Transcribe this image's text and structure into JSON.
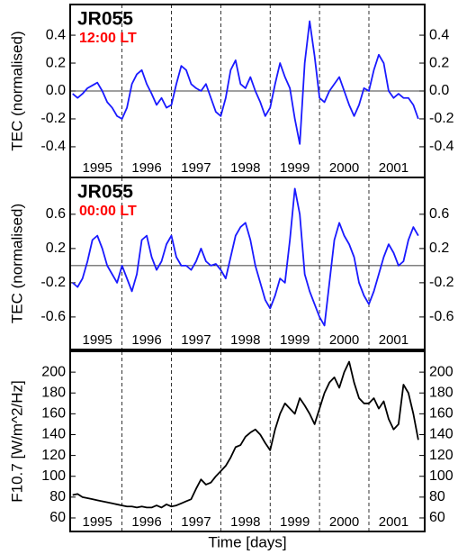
{
  "chart_data": [
    {
      "type": "line",
      "title": "JR055",
      "subtitle": "12:00 LT",
      "ylabel": "TEC (normalised)",
      "color": "#1a1aff",
      "zero_line": true,
      "xlim": [
        1994.95,
        2002.13
      ],
      "ylim": [
        -0.62,
        0.62
      ],
      "yticks": [
        -0.4,
        -0.2,
        {
          "value": 0,
          "label": "0.0"
        },
        0.2,
        0.4
      ],
      "xticks": [
        {
          "value": 1995.5,
          "label": "1995"
        },
        {
          "value": 1996.5,
          "label": "1996"
        },
        {
          "value": 1997.5,
          "label": "1997"
        },
        {
          "value": 1998.5,
          "label": "1998"
        },
        {
          "value": 1999.5,
          "label": "1999"
        },
        {
          "value": 2000.5,
          "label": "2000"
        },
        {
          "value": 2001.5,
          "label": "2001"
        }
      ],
      "vlines": [
        1996,
        1997,
        1998,
        1999,
        2000,
        2001
      ],
      "x": [
        1995.0,
        1995.1,
        1995.2,
        1995.3,
        1995.4,
        1995.5,
        1995.6,
        1995.7,
        1995.8,
        1995.9,
        1996.0,
        1996.1,
        1996.2,
        1996.3,
        1996.4,
        1996.5,
        1996.6,
        1996.7,
        1996.8,
        1996.9,
        1997.0,
        1997.1,
        1997.2,
        1997.3,
        1997.4,
        1997.5,
        1997.6,
        1997.7,
        1997.8,
        1997.9,
        1998.0,
        1998.1,
        1998.2,
        1998.3,
        1998.4,
        1998.5,
        1998.6,
        1998.7,
        1998.8,
        1998.9,
        1999.0,
        1999.1,
        1999.2,
        1999.3,
        1999.4,
        1999.5,
        1999.6,
        1999.7,
        1999.8,
        1999.9,
        2000.0,
        2000.1,
        2000.2,
        2000.3,
        2000.4,
        2000.5,
        2000.6,
        2000.7,
        2000.8,
        2000.9,
        2001.0,
        2001.1,
        2001.2,
        2001.3,
        2001.4,
        2001.5,
        2001.6,
        2001.7,
        2001.8,
        2001.9,
        2002.0
      ],
      "values": [
        -0.02,
        -0.05,
        -0.02,
        0.02,
        0.04,
        0.06,
        0.0,
        -0.08,
        -0.12,
        -0.18,
        -0.2,
        -0.12,
        0.05,
        0.12,
        0.15,
        0.05,
        -0.02,
        -0.1,
        -0.05,
        -0.12,
        -0.1,
        0.05,
        0.18,
        0.15,
        0.05,
        0.02,
        0.0,
        0.05,
        -0.05,
        -0.15,
        -0.18,
        -0.05,
        0.15,
        0.22,
        0.05,
        0.02,
        0.1,
        0.0,
        -0.08,
        -0.18,
        -0.12,
        0.05,
        0.2,
        0.1,
        0.02,
        -0.2,
        -0.38,
        0.2,
        0.5,
        0.25,
        -0.05,
        -0.08,
        0.0,
        0.05,
        0.1,
        0.0,
        -0.1,
        -0.18,
        -0.1,
        0.02,
        0.0,
        0.15,
        0.26,
        0.2,
        0.0,
        -0.05,
        -0.02,
        -0.05,
        -0.05,
        -0.1,
        -0.2
      ]
    },
    {
      "type": "line",
      "title": "JR055",
      "subtitle": "00:00 LT",
      "ylabel": "TEC (normalised)",
      "color": "#1a1aff",
      "zero_line": true,
      "xlim": [
        1994.95,
        2002.13
      ],
      "ylim": [
        -0.98,
        1.03
      ],
      "yticks": [
        -0.6,
        -0.2,
        0.2,
        0.6
      ],
      "xticks": [
        {
          "value": 1995.5,
          "label": "1995"
        },
        {
          "value": 1996.5,
          "label": "1996"
        },
        {
          "value": 1997.5,
          "label": "1997"
        },
        {
          "value": 1998.5,
          "label": "1998"
        },
        {
          "value": 1999.5,
          "label": "1999"
        },
        {
          "value": 2000.5,
          "label": "2000"
        },
        {
          "value": 2001.5,
          "label": "2001"
        }
      ],
      "vlines": [
        1996,
        1997,
        1998,
        1999,
        2000,
        2001
      ],
      "x": [
        1995.0,
        1995.1,
        1995.2,
        1995.3,
        1995.4,
        1995.5,
        1995.6,
        1995.7,
        1995.8,
        1995.9,
        1996.0,
        1996.1,
        1996.2,
        1996.3,
        1996.4,
        1996.5,
        1996.6,
        1996.7,
        1996.8,
        1996.9,
        1997.0,
        1997.1,
        1997.2,
        1997.3,
        1997.4,
        1997.5,
        1997.6,
        1997.7,
        1997.8,
        1997.9,
        1998.0,
        1998.1,
        1998.2,
        1998.3,
        1998.4,
        1998.5,
        1998.6,
        1998.7,
        1998.8,
        1998.9,
        1999.0,
        1999.1,
        1999.2,
        1999.3,
        1999.4,
        1999.5,
        1999.6,
        1999.7,
        1999.8,
        1999.9,
        2000.0,
        2000.1,
        2000.2,
        2000.3,
        2000.4,
        2000.5,
        2000.6,
        2000.7,
        2000.8,
        2000.9,
        2001.0,
        2001.1,
        2001.2,
        2001.3,
        2001.4,
        2001.5,
        2001.6,
        2001.7,
        2001.8,
        2001.9,
        2002.0
      ],
      "values": [
        -0.2,
        -0.25,
        -0.15,
        0.05,
        0.3,
        0.35,
        0.2,
        0.0,
        -0.1,
        -0.2,
        0.0,
        -0.15,
        -0.3,
        -0.1,
        0.3,
        0.35,
        0.1,
        -0.05,
        0.05,
        0.25,
        0.35,
        0.1,
        0.0,
        0.0,
        -0.05,
        0.05,
        0.2,
        0.05,
        0.0,
        0.02,
        -0.05,
        -0.15,
        0.1,
        0.35,
        0.45,
        0.5,
        0.3,
        0.0,
        -0.2,
        -0.4,
        -0.5,
        -0.35,
        -0.15,
        -0.2,
        0.3,
        0.9,
        0.6,
        -0.1,
        -0.3,
        -0.45,
        -0.6,
        -0.7,
        -0.2,
        0.3,
        0.5,
        0.35,
        0.25,
        0.1,
        -0.2,
        -0.35,
        -0.45,
        -0.3,
        -0.1,
        0.1,
        0.25,
        0.15,
        0.0,
        0.05,
        0.3,
        0.45,
        0.35
      ]
    },
    {
      "type": "line",
      "ylabel": "F10.7 [W/m^2/Hz]",
      "xlabel": "Time [days]",
      "color": "#000000",
      "zero_line": false,
      "xlim": [
        1994.95,
        2002.13
      ],
      "ylim": [
        47,
        220
      ],
      "yticks": [
        60,
        80,
        100,
        120,
        140,
        160,
        180,
        200
      ],
      "xticks": [
        {
          "value": 1995.5,
          "label": "1995"
        },
        {
          "value": 1996.5,
          "label": "1996"
        },
        {
          "value": 1997.5,
          "label": "1997"
        },
        {
          "value": 1998.5,
          "label": "1998"
        },
        {
          "value": 1999.5,
          "label": "1999"
        },
        {
          "value": 2000.5,
          "label": "2000"
        },
        {
          "value": 2001.5,
          "label": "2001"
        }
      ],
      "vlines": [
        1996,
        1997,
        1998,
        1999,
        2000,
        2001
      ],
      "x": [
        1995.0,
        1995.1,
        1995.2,
        1995.3,
        1995.4,
        1995.5,
        1995.6,
        1995.7,
        1995.8,
        1995.9,
        1996.0,
        1996.1,
        1996.2,
        1996.3,
        1996.4,
        1996.5,
        1996.6,
        1996.7,
        1996.8,
        1996.9,
        1997.0,
        1997.1,
        1997.2,
        1997.3,
        1997.4,
        1997.5,
        1997.6,
        1997.7,
        1997.8,
        1997.9,
        1998.0,
        1998.1,
        1998.2,
        1998.3,
        1998.4,
        1998.5,
        1998.6,
        1998.7,
        1998.8,
        1998.9,
        1999.0,
        1999.1,
        1999.2,
        1999.3,
        1999.4,
        1999.5,
        1999.6,
        1999.7,
        1999.8,
        1999.9,
        2000.0,
        2000.1,
        2000.2,
        2000.3,
        2000.4,
        2000.5,
        2000.6,
        2000.7,
        2000.8,
        2000.9,
        2001.0,
        2001.1,
        2001.2,
        2001.3,
        2001.4,
        2001.5,
        2001.6,
        2001.7,
        2001.8,
        2001.9,
        2002.0
      ],
      "values": [
        82,
        83,
        80,
        79,
        78,
        77,
        76,
        75,
        74,
        73,
        72,
        71,
        71,
        70,
        71,
        70,
        70,
        72,
        70,
        73,
        71,
        72,
        74,
        76,
        78,
        88,
        97,
        92,
        94,
        100,
        105,
        110,
        118,
        128,
        130,
        138,
        142,
        145,
        140,
        132,
        125,
        145,
        160,
        170,
        165,
        160,
        175,
        168,
        160,
        150,
        165,
        180,
        190,
        195,
        185,
        200,
        210,
        190,
        175,
        170,
        170,
        175,
        165,
        172,
        155,
        145,
        150,
        188,
        180,
        160,
        135
      ]
    }
  ]
}
